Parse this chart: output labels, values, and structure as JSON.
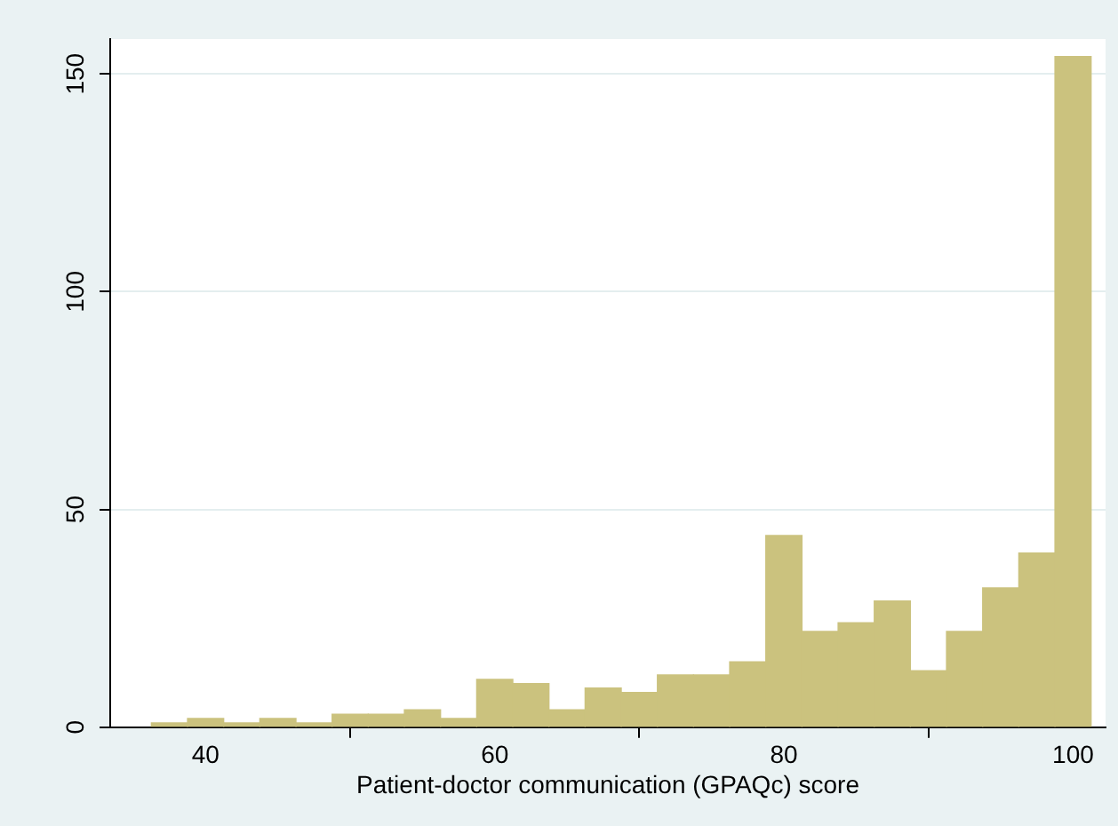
{
  "chart_data": {
    "type": "histogram",
    "xlabel": "Patient-doctor communication (GPAQc) score",
    "bins": [
      36.25,
      38.75,
      41.25,
      43.75,
      46.25,
      48.75,
      51.25,
      53.75,
      56.25,
      58.75,
      61.25,
      63.75,
      66.25,
      68.75,
      71.25,
      73.75,
      76.25,
      78.75,
      81.25,
      83.75,
      86.25,
      88.75,
      91.25,
      93.75,
      96.25,
      98.75,
      101.25
    ],
    "values": [
      1,
      2,
      1,
      2,
      1,
      3,
      3,
      4,
      2,
      11,
      10,
      4,
      9,
      8,
      12,
      12,
      15,
      44,
      22,
      24,
      29,
      13,
      22,
      32,
      40,
      154
    ],
    "color": "#cbc27e",
    "xlim": [
      33.4,
      102.25
    ],
    "xticks": [
      40,
      60,
      80,
      100
    ],
    "ylim": [
      0,
      158
    ],
    "yticks": [
      0,
      50,
      100,
      150
    ],
    "grid": "y",
    "legend": false
  }
}
